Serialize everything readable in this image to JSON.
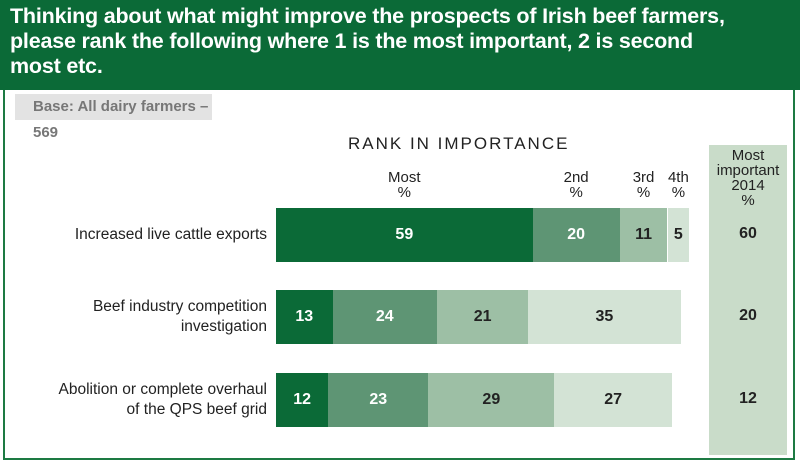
{
  "header": {
    "title_line1": "Thinking about what might improve the prospects of Irish beef farmers,",
    "title_line2": "please rank the following where 1 is the most important, 2 is second",
    "title_line3": "most etc."
  },
  "base": "Base: All dairy farmers – 569",
  "chart_data": {
    "type": "bar",
    "title": "RANK IN IMPORTANCE",
    "stacked": true,
    "orientation": "horizontal",
    "column_headers": [
      [
        "Most",
        "%"
      ],
      [
        "2nd",
        "%"
      ],
      [
        "3rd",
        "%"
      ],
      [
        "4th",
        "%"
      ]
    ],
    "side_header": [
      "Most",
      "important",
      "2014",
      "%"
    ],
    "categories": [
      "Increased live cattle exports",
      "Beef industry competition investigation",
      "Abolition or complete overhaul of the QPS beef grid"
    ],
    "category_lines": [
      [
        "Increased live cattle exports"
      ],
      [
        "Beef industry competition",
        "investigation"
      ],
      [
        "Abolition or complete overhaul",
        "of the QPS beef grid"
      ]
    ],
    "series": [
      {
        "name": "Most",
        "values": [
          59,
          13,
          12
        ],
        "color": "#0b6a37",
        "text": "#ffffff"
      },
      {
        "name": "2nd",
        "values": [
          20,
          24,
          23
        ],
        "color": "#5e9574",
        "text": "#ffffff"
      },
      {
        "name": "3rd",
        "values": [
          11,
          21,
          29
        ],
        "color": "#9dbfa5",
        "text": "#222222"
      },
      {
        "name": "4th",
        "values": [
          5,
          35,
          27
        ],
        "color": "#d3e3d5",
        "text": "#222222"
      }
    ],
    "most_important_2014": [
      60,
      20,
      12
    ]
  }
}
